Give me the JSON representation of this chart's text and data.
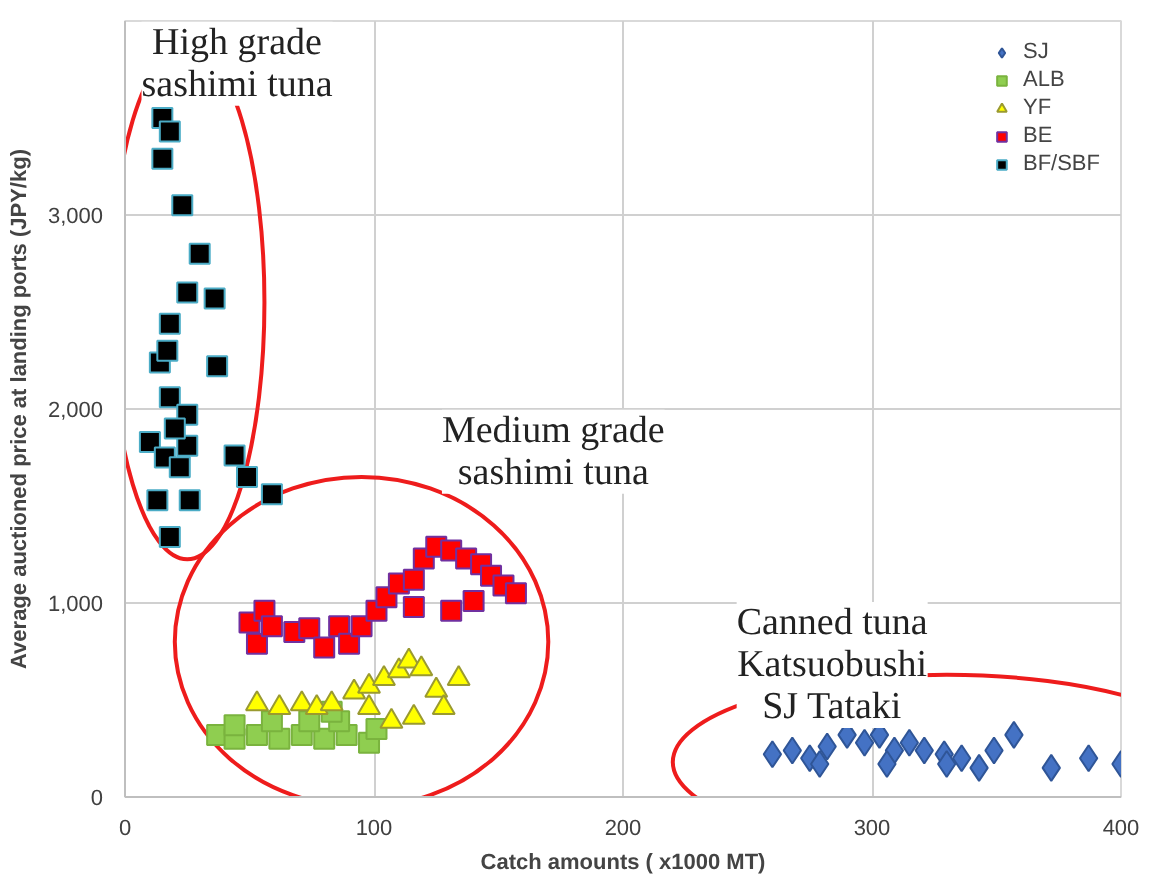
{
  "chart_data": {
    "type": "scatter",
    "xlabel": "Catch amounts ( x1000 MT)",
    "ylabel": "Average auctioned price at landing ports (JPY/kg)",
    "xlim": [
      0,
      400
    ],
    "xticks": [
      0,
      100,
      200,
      300,
      400
    ],
    "ylim": [
      0,
      4000
    ],
    "yticks": [
      {
        "value": 0,
        "label": "0"
      },
      {
        "value": 1000,
        "label": "1,000"
      },
      {
        "value": 2000,
        "label": "2,000"
      },
      {
        "value": 3000,
        "label": "3,000"
      },
      {
        "value": 4000,
        "label": null
      }
    ],
    "grid": true,
    "legend": "top right",
    "annotations": [
      "High grade\nsashimi tuna",
      "Medium grade\nsashimi tuna",
      "Canned tuna\nKatsuobushi\nSJ Tataki"
    ],
    "series": [
      {
        "name": "SJ",
        "color": "#4472c4",
        "marker": "diamond",
        "x": [
          260,
          268,
          275,
          282,
          290,
          297,
          303,
          309,
          315,
          321,
          329,
          336,
          343,
          349,
          357,
          372,
          387,
          400,
          279,
          306,
          330
        ],
        "values": [
          220,
          240,
          200,
          260,
          320,
          280,
          320,
          240,
          280,
          240,
          220,
          200,
          150,
          240,
          320,
          150,
          200,
          170,
          170,
          170,
          170
        ]
      },
      {
        "name": "ALB",
        "color": "#8fce50",
        "marker": "square",
        "x": [
          37,
          44,
          53,
          62,
          71,
          80,
          89,
          98,
          59,
          74,
          44,
          86,
          101,
          83
        ],
        "values": [
          320,
          300,
          320,
          300,
          320,
          300,
          320,
          280,
          390,
          390,
          370,
          390,
          350,
          440
        ]
      },
      {
        "name": "YF",
        "color": "#ffff00",
        "marker": "triangle",
        "x": [
          53,
          62,
          71,
          77,
          83,
          92,
          98,
          104,
          110,
          114,
          119,
          125,
          134,
          116,
          128,
          107,
          98
        ],
        "values": [
          480,
          460,
          480,
          460,
          480,
          540,
          570,
          610,
          650,
          700,
          660,
          550,
          610,
          410,
          460,
          390,
          460
        ]
      },
      {
        "name": "BE",
        "color": "#ff0000",
        "marker": "square",
        "x": [
          50,
          56,
          68,
          74,
          86,
          90,
          95,
          101,
          105,
          110,
          116,
          120,
          125,
          131,
          137,
          143,
          147,
          152,
          157,
          140,
          131,
          116,
          53,
          80,
          59
        ],
        "values": [
          900,
          960,
          850,
          870,
          880,
          790,
          880,
          960,
          1030,
          1100,
          1120,
          1230,
          1290,
          1270,
          1230,
          1200,
          1140,
          1090,
          1050,
          1010,
          960,
          980,
          790,
          770,
          880
        ]
      },
      {
        "name": "BF/SBF",
        "color": "#000000",
        "marker": "square",
        "x": [
          15,
          18,
          15,
          23,
          30,
          25,
          36,
          18,
          14,
          37,
          18,
          25,
          10,
          25,
          16,
          44,
          49,
          59,
          13,
          26,
          18,
          17,
          20,
          22
        ],
        "values": [
          3500,
          3430,
          3290,
          3050,
          2800,
          2600,
          2570,
          2440,
          2240,
          2220,
          2060,
          1970,
          1830,
          1810,
          1750,
          1760,
          1650,
          1560,
          1530,
          1530,
          1340,
          2300,
          1900,
          1700
        ]
      }
    ]
  }
}
